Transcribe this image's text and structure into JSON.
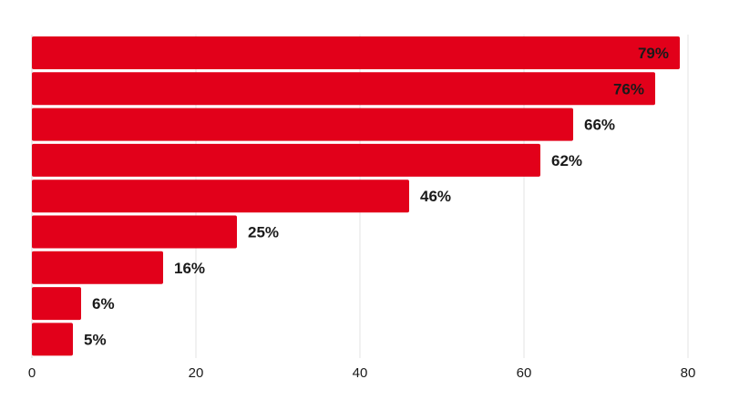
{
  "chart_data": {
    "type": "bar",
    "orientation": "horizontal",
    "values": [
      79,
      76,
      66,
      62,
      46,
      25,
      16,
      6,
      5
    ],
    "data_labels": [
      "79%",
      "76%",
      "66%",
      "62%",
      "46%",
      "25%",
      "16%",
      "6%",
      "5%"
    ],
    "xlim": [
      0,
      80
    ],
    "x_ticks": [
      0,
      20,
      40,
      60,
      80
    ],
    "x_tick_labels": [
      "0",
      "20",
      "40",
      "60",
      "80"
    ],
    "grid": true,
    "legend": "none",
    "bar_color": "#e2001a"
  }
}
